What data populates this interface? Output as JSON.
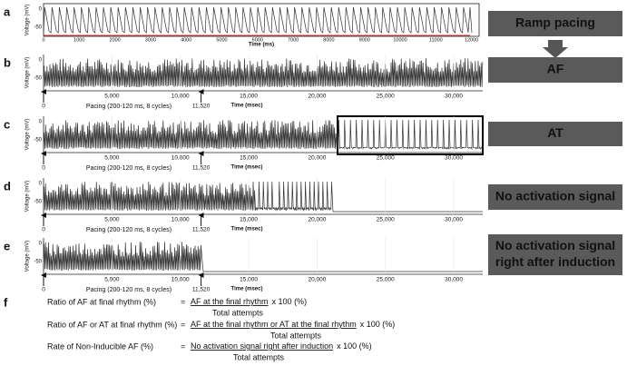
{
  "panels": [
    {
      "letter": "a",
      "y_label": "Voltage (mV)",
      "y_ticks": [
        "0",
        "-50"
      ],
      "x_ticks": [
        "0",
        "1000",
        "2000",
        "3000",
        "4000",
        "5000",
        "6000",
        "7000",
        "8000",
        "9000",
        "10000",
        "11000",
        "12000"
      ],
      "x_label": "Time (ms)",
      "label_lines": [
        "Ramp pacing"
      ]
    },
    {
      "letter": "b",
      "y_label": "Voltage (mV)",
      "y_ticks": [
        "0",
        "-50"
      ],
      "x_ticks": [
        "5,000",
        "10,000",
        "15,000",
        "20,000",
        "25,000",
        "30,000"
      ],
      "markers": [
        "0",
        "11,520"
      ],
      "pacing": "Pacing (200-120 ms, 8 cycles)",
      "x_label": "Time (msec)",
      "label_lines": [
        "AF"
      ]
    },
    {
      "letter": "c",
      "y_label": "Voltage (mV)",
      "y_ticks": [
        "0",
        "-50"
      ],
      "x_ticks": [
        "5,000",
        "10,000",
        "15,000",
        "20,000",
        "25,000",
        "30,000"
      ],
      "markers": [
        "0",
        "11,520"
      ],
      "pacing": "Pacing (200-120 ms, 8 cycles)",
      "x_label": "Time (msec)",
      "label_lines": [
        "AT"
      ]
    },
    {
      "letter": "d",
      "y_label": "Voltage (mV)",
      "y_ticks": [
        "0",
        "-50"
      ],
      "x_ticks": [
        "5,000",
        "10,000",
        "15,000",
        "20,000",
        "25,000",
        "30,000"
      ],
      "markers": [
        "0",
        "11,520"
      ],
      "pacing": "Pacing (200-120 ms, 8 cycles)",
      "x_label": "Time (msec)",
      "label_lines": [
        "No activation signal"
      ]
    },
    {
      "letter": "e",
      "y_label": "Voltage (mV)",
      "y_ticks": [
        "0",
        "-50"
      ],
      "x_ticks": [
        "5,000",
        "10,000",
        "15,000",
        "20,000",
        "25,000",
        "30,000"
      ],
      "markers": [
        "0",
        "11,520"
      ],
      "pacing": "Pacing (200-120 ms, 8 cycles)",
      "x_label": "Time (msec)",
      "label_lines": [
        "No activation signal",
        "right after induction"
      ]
    }
  ],
  "formulas": {
    "letter": "f",
    "rows": [
      {
        "name": "Ratio of AF at final rhythm (%)",
        "equals": "=",
        "numerator": "AF at the final rhythm",
        "factor": "x 100 (%)",
        "denominator": "Total attempts"
      },
      {
        "name": "Ratio of AF or AT at final rhythm (%)",
        "equals": "=",
        "numerator": "AF at the final rhythm or AT at the final rhythm",
        "factor": "x 100 (%)",
        "denominator": "Total attempts"
      },
      {
        "name": "Rate of Non-Inducible AF (%)",
        "equals": "=",
        "numerator": "No activation signal right after induction",
        "factor": "x 100 (%)",
        "denominator": "Total attempts"
      }
    ]
  }
}
